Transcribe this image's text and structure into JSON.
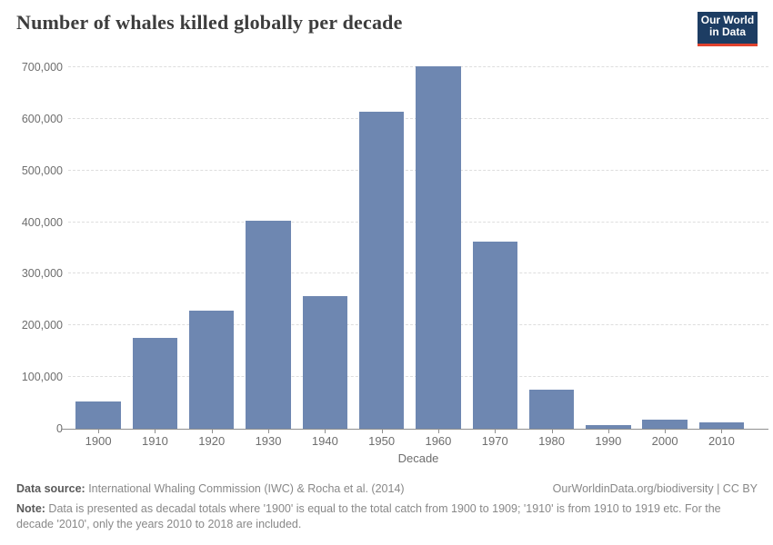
{
  "header": {
    "title": "Number of whales killed globally per decade",
    "logo": {
      "line1": "Our World",
      "line2": "in Data",
      "bg_color": "#1d3d63",
      "accent_color": "#e0422e"
    }
  },
  "chart_data": {
    "type": "bar",
    "title": "Number of whales killed globally per decade",
    "categories": [
      "1900",
      "1910",
      "1920",
      "1930",
      "1940",
      "1950",
      "1960",
      "1970",
      "1980",
      "1990",
      "2000",
      "2010"
    ],
    "values": [
      52000,
      176000,
      228000,
      403000,
      256000,
      613000,
      702000,
      362000,
      76000,
      7000,
      17000,
      12000
    ],
    "xlabel": "Decade",
    "ylabel": "",
    "ylim": [
      0,
      700000
    ],
    "grid": "horizontal-dashed",
    "legend": "none",
    "bar_color": "#6e87b1",
    "yticks": [
      {
        "value": 0,
        "label": "0"
      },
      {
        "value": 100000,
        "label": "100,000"
      },
      {
        "value": 200000,
        "label": "200,000"
      },
      {
        "value": 300000,
        "label": "300,000"
      },
      {
        "value": 400000,
        "label": "400,000"
      },
      {
        "value": 500000,
        "label": "500,000"
      },
      {
        "value": 600000,
        "label": "600,000"
      },
      {
        "value": 700000,
        "label": "700,000"
      }
    ]
  },
  "footer": {
    "source_label": "Data source:",
    "source_text": " International Whaling Commission (IWC) & Rocha et al. (2014)",
    "link_text": "OurWorldinData.org/biodiversity | CC BY",
    "note_label": "Note:",
    "note_text": " Data is presented as decadal totals where '1900' is equal to the total catch from 1900 to 1909; '1910' is from 1910 to 1919 etc. For the decade '2010', only the years 2010 to 2018 are included."
  }
}
